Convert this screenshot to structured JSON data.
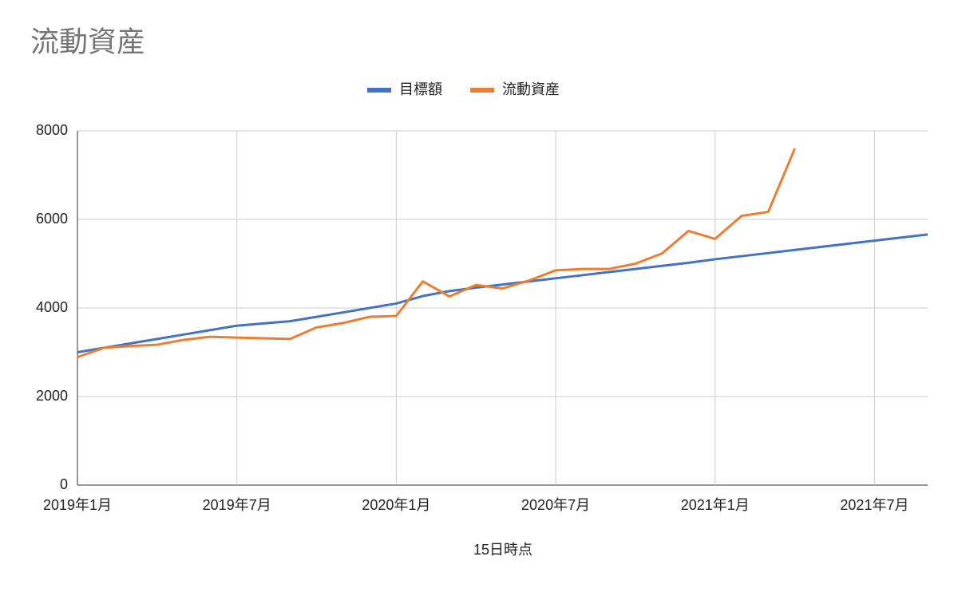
{
  "chart_data": {
    "type": "line",
    "title": "流動資産",
    "x_label": "15日時点",
    "x": [
      "2019-01",
      "2019-02",
      "2019-03",
      "2019-04",
      "2019-05",
      "2019-06",
      "2019-07",
      "2019-08",
      "2019-09",
      "2019-10",
      "2019-11",
      "2019-12",
      "2020-01",
      "2020-02",
      "2020-03",
      "2020-04",
      "2020-05",
      "2020-06",
      "2020-07",
      "2020-08",
      "2020-09",
      "2020-10",
      "2020-11",
      "2020-12",
      "2021-01",
      "2021-02",
      "2021-03",
      "2021-04",
      "2021-05",
      "2021-06",
      "2021-07",
      "2021-08",
      "2021-09"
    ],
    "series": [
      {
        "name": "目標額",
        "color": "#4472c4",
        "values": [
          3000,
          3100,
          3200,
          3300,
          3400,
          3500,
          3600,
          3650,
          3700,
          3800,
          3900,
          4000,
          4100,
          4270,
          4380,
          4460,
          4530,
          4600,
          4670,
          4740,
          4810,
          4880,
          4950,
          5020,
          5100,
          5170,
          5240,
          5310,
          5380,
          5450,
          5520,
          5590,
          5660
        ]
      },
      {
        "name": "流動資産",
        "color": "#ed7d31",
        "values": [
          2890,
          3100,
          3140,
          3170,
          3280,
          3350,
          3330,
          3315,
          3300,
          3560,
          3660,
          3800,
          3820,
          4600,
          4260,
          4520,
          4440,
          4620,
          4850,
          4880,
          4880,
          5000,
          5230,
          5740,
          5560,
          6080,
          6170,
          7600,
          null,
          null,
          null,
          null,
          null
        ]
      }
    ],
    "xlim": [
      "2019-01",
      "2021-09"
    ],
    "xticks": [
      {
        "value": "2019-01",
        "label": "2019年1月"
      },
      {
        "value": "2019-07",
        "label": "2019年7月"
      },
      {
        "value": "2020-01",
        "label": "2020年1月"
      },
      {
        "value": "2020-07",
        "label": "2020年7月"
      },
      {
        "value": "2021-01",
        "label": "2021年1月"
      },
      {
        "value": "2021-07",
        "label": "2021年7月"
      }
    ],
    "ylim": [
      0,
      8000
    ],
    "yticks": [
      0,
      2000,
      4000,
      6000,
      8000
    ],
    "grid": true,
    "legend": "top"
  }
}
